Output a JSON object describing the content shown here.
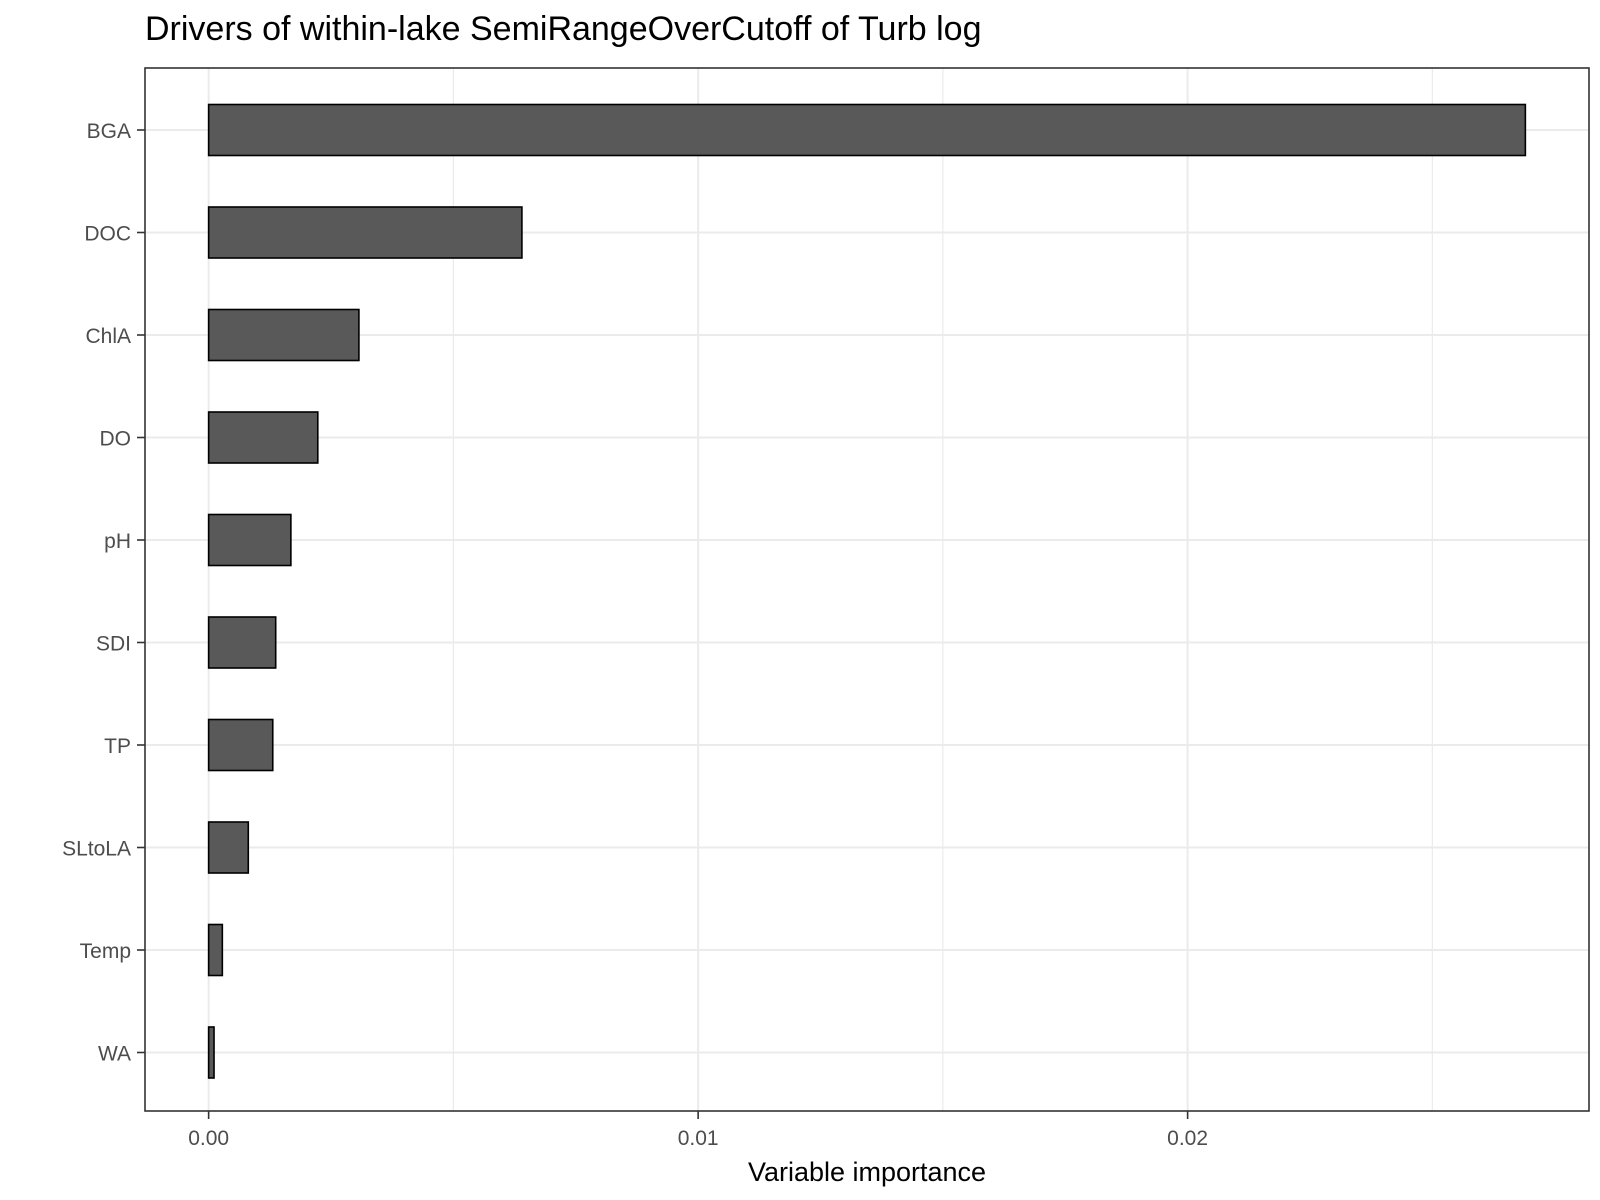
{
  "chart_data": {
    "type": "bar",
    "orientation": "horizontal",
    "title": "Drivers of within-lake SemiRangeOverCutoff of Turb log",
    "xlabel": "Variable importance",
    "ylabel": "",
    "categories": [
      "BGA",
      "DOC",
      "ChlA",
      "DO",
      "pH",
      "SDI",
      "TP",
      "SLtoLA",
      "Temp",
      "WA"
    ],
    "values": [
      0.0269,
      0.0064,
      0.00307,
      0.00223,
      0.00168,
      0.00137,
      0.00131,
      0.00081,
      0.00028,
      0.00011
    ],
    "xlim": [
      -0.0013,
      0.0282
    ],
    "xticks": [
      0.0,
      0.01,
      0.02
    ],
    "xtick_labels": [
      "0.00",
      "0.01",
      "0.02"
    ],
    "grid": true,
    "legend": "none",
    "colors": {
      "bar_fill": "#595959",
      "bar_stroke": "#000000",
      "grid": "#ebebeb",
      "panel_border": "#333333"
    }
  }
}
